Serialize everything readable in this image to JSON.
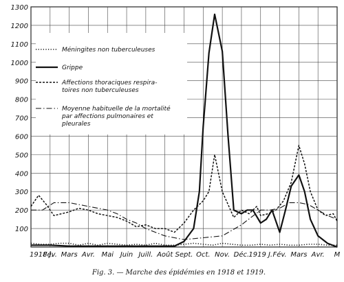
{
  "chart_data": {
    "type": "line",
    "title": "",
    "xlabel": "",
    "ylabel": "",
    "ylim": [
      0,
      1300
    ],
    "yticks": [
      100,
      200,
      300,
      400,
      500,
      600,
      700,
      800,
      900,
      1000,
      1100,
      1200,
      1300
    ],
    "grid": true,
    "legend_position": "top-left",
    "categories": [
      "1918 J.",
      "Fév.",
      "Mars",
      "Avr.",
      "Mai",
      "Juin",
      "Juill.",
      "Août",
      "Sept.",
      "Oct.",
      "Nov.",
      "Déc.",
      "1919 J.",
      "Fév.",
      "Mars",
      "Avr.",
      "M"
    ],
    "series": [
      {
        "name": "Méningites non tuberculeuses",
        "style": "dotted",
        "x": [
          0,
          0.5,
          1,
          1.5,
          2,
          2.5,
          3,
          3.5,
          4,
          4.5,
          5,
          5.5,
          6,
          6.5,
          7,
          7.5,
          8,
          8.5,
          9,
          9.5,
          10,
          10.5,
          11,
          11.5,
          12,
          12.5,
          13,
          13.5,
          14,
          14.5,
          15,
          15.5,
          16
        ],
        "y": [
          20,
          15,
          15,
          20,
          20,
          10,
          20,
          10,
          20,
          15,
          10,
          15,
          10,
          20,
          10,
          10,
          15,
          20,
          15,
          10,
          20,
          15,
          10,
          10,
          15,
          10,
          15,
          10,
          10,
          15,
          15,
          10,
          10
        ]
      },
      {
        "name": "Grippe",
        "style": "solid",
        "x": [
          0,
          1,
          2,
          3,
          4,
          5,
          6,
          7,
          7.5,
          8,
          8.5,
          8.8,
          9,
          9.3,
          9.6,
          10,
          10.3,
          10.6,
          11,
          11.3,
          11.6,
          12,
          12.3,
          12.6,
          13,
          13.3,
          13.6,
          14,
          14.3,
          14.6,
          15,
          15.5,
          16
        ],
        "y": [
          10,
          10,
          5,
          5,
          5,
          5,
          5,
          5,
          5,
          30,
          100,
          300,
          650,
          1050,
          1260,
          1060,
          600,
          200,
          180,
          200,
          200,
          130,
          150,
          200,
          80,
          200,
          330,
          390,
          300,
          150,
          60,
          20,
          0
        ]
      },
      {
        "name": "Affections thoraciques respiratoires non tuberculeuses",
        "style": "dashed",
        "x": [
          0,
          0.4,
          0.8,
          1.2,
          1.6,
          2,
          2.5,
          3,
          3.5,
          4,
          4.5,
          5,
          5.5,
          6,
          6.5,
          7,
          7.5,
          8,
          8.5,
          9,
          9.3,
          9.6,
          10,
          10.3,
          10.6,
          11,
          11.4,
          11.8,
          12,
          12.4,
          12.8,
          13.2,
          13.6,
          14,
          14.3,
          14.6,
          15,
          15.4,
          15.8,
          16
        ],
        "y": [
          220,
          280,
          230,
          170,
          180,
          190,
          210,
          200,
          180,
          170,
          160,
          140,
          110,
          120,
          100,
          100,
          80,
          130,
          200,
          250,
          300,
          500,
          300,
          230,
          160,
          200,
          180,
          220,
          170,
          180,
          200,
          250,
          350,
          550,
          450,
          300,
          200,
          170,
          180,
          140
        ]
      },
      {
        "name": "Moyenne habituelle de la mortalité par affections pulmonaires et pleurales",
        "style": "dash-dot",
        "x": [
          0,
          0.6,
          1.2,
          2,
          3,
          4,
          4.5,
          5,
          5.5,
          6,
          6.5,
          7,
          7.5,
          8,
          9,
          10,
          11,
          11.5,
          12,
          12.5,
          13,
          13.5,
          14,
          14.5,
          15,
          15.5,
          16
        ],
        "y": [
          200,
          200,
          240,
          240,
          220,
          200,
          180,
          150,
          130,
          100,
          80,
          60,
          50,
          40,
          50,
          60,
          120,
          160,
          200,
          200,
          210,
          240,
          240,
          230,
          200,
          170,
          150
        ]
      }
    ]
  },
  "caption": "Fig. 3. — Marche des épidémies en 1918 et 1919."
}
